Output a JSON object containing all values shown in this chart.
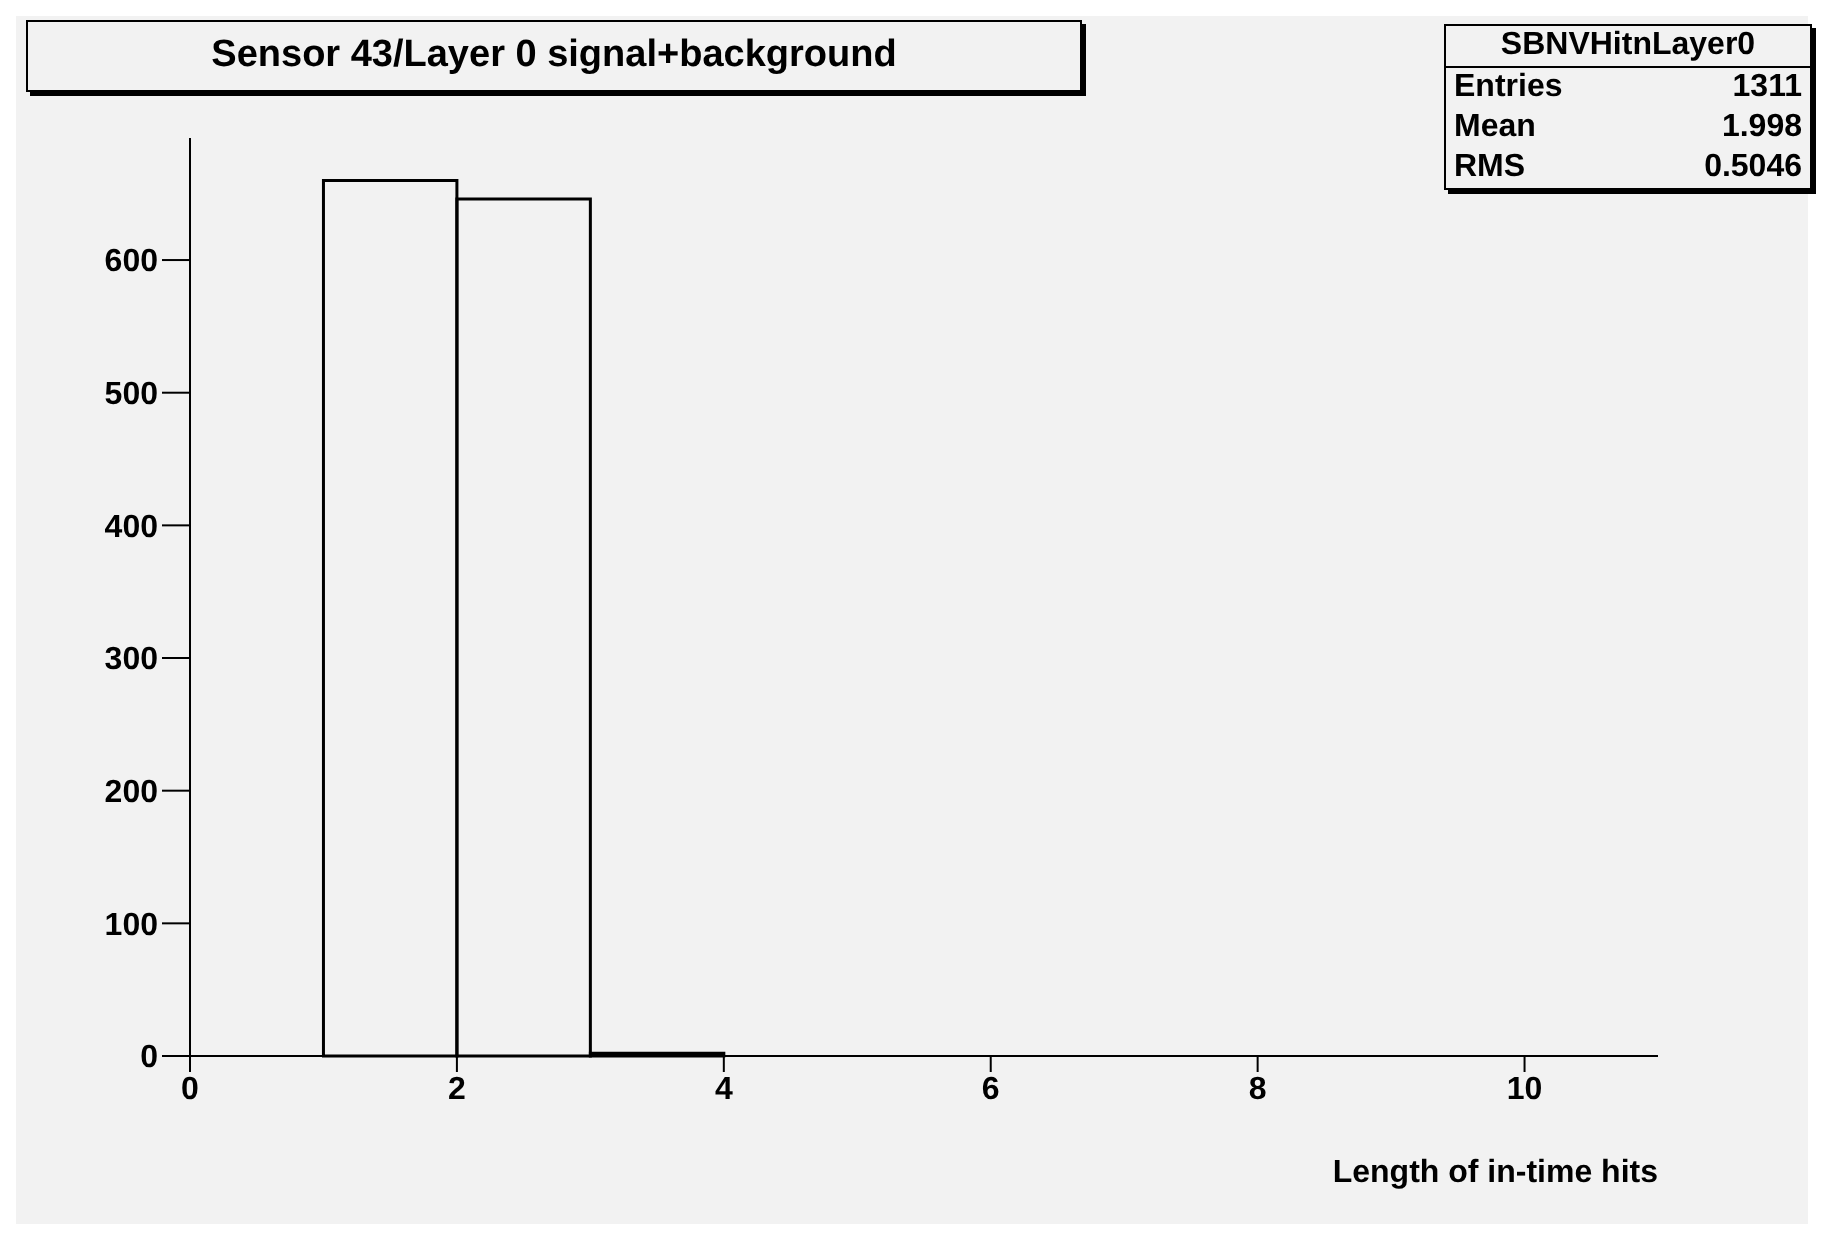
{
  "chart_data": {
    "type": "histogram",
    "title": "Sensor 43/Layer 0 signal+background",
    "xlabel": "Length of in-time hits",
    "bins": [
      0,
      1,
      2,
      3,
      4,
      5,
      6,
      7,
      8,
      9,
      10,
      11
    ],
    "values": [
      0,
      660,
      646,
      2,
      0,
      0,
      0,
      0,
      0,
      0,
      0
    ],
    "color": "#000000",
    "xlim": [
      0,
      11
    ],
    "xticks": [
      0,
      2,
      4,
      6,
      8,
      10
    ],
    "ylim": [
      0,
      692
    ],
    "yticks": [
      0,
      100,
      200,
      300,
      400,
      500,
      600
    ],
    "annotations": [
      "SBNVHitnLayer0",
      "Entries",
      "1311",
      "Mean",
      "1.998",
      "RMS",
      "0.5046"
    ]
  }
}
